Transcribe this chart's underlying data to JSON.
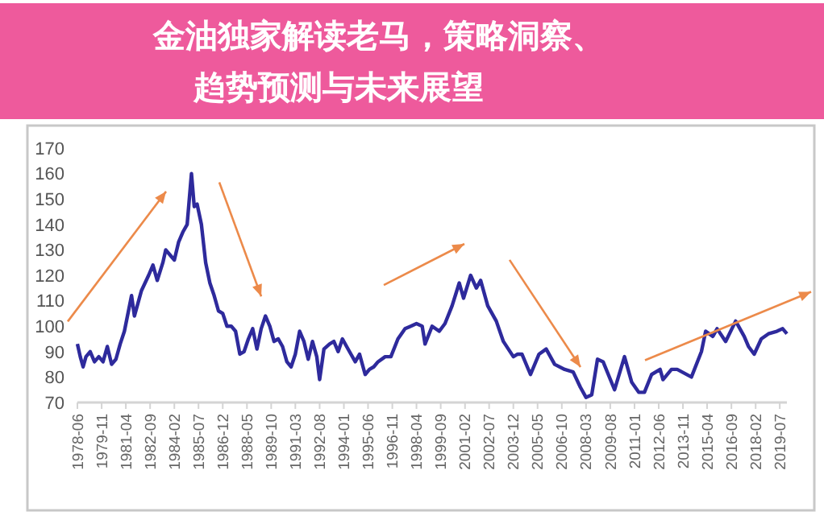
{
  "chart_data": {
    "type": "line",
    "title": "金油独家解读老马，策略洞察、趋势预测与未来展望",
    "x": [
      "1978-06",
      "1978-08",
      "1978-10",
      "1978-12",
      "1979-03",
      "1979-06",
      "1979-09",
      "1979-12",
      "1980-03",
      "1980-06",
      "1980-09",
      "1980-12",
      "1981-03",
      "1981-08",
      "1981-10",
      "1982-03",
      "1982-08",
      "1982-11",
      "1983-02",
      "1983-06",
      "1983-08",
      "1983-11",
      "1984-02",
      "1984-05",
      "1984-08",
      "1984-11",
      "1985-02",
      "1985-04",
      "1985-06",
      "1985-09",
      "1985-12",
      "1986-03",
      "1986-06",
      "1986-09",
      "1986-12",
      "1987-03",
      "1987-06",
      "1987-09",
      "1987-12",
      "1988-03",
      "1988-06",
      "1988-09",
      "1988-12",
      "1989-03",
      "1989-06",
      "1989-09",
      "1989-12",
      "1990-03",
      "1990-06",
      "1990-09",
      "1990-12",
      "1991-03",
      "1991-06",
      "1991-09",
      "1991-12",
      "1992-03",
      "1992-06",
      "1992-08",
      "1992-11",
      "1993-03",
      "1993-06",
      "1993-09",
      "1993-12",
      "1994-03",
      "1994-06",
      "1994-09",
      "1994-12",
      "1995-04",
      "1995-07",
      "1995-10",
      "1996-01",
      "1996-06",
      "1996-10",
      "1997-03",
      "1997-08",
      "1997-12",
      "1998-04",
      "1998-08",
      "1998-10",
      "1999-03",
      "1999-08",
      "1999-12",
      "2000-05",
      "2000-10",
      "2001-01",
      "2001-06",
      "2001-10",
      "2002-01",
      "2002-06",
      "2002-12",
      "2003-05",
      "2003-12",
      "2004-03",
      "2004-06",
      "2004-12",
      "2005-06",
      "2005-11",
      "2006-05",
      "2006-12",
      "2007-06",
      "2007-11",
      "2008-03",
      "2008-07",
      "2008-11",
      "2009-03",
      "2009-11",
      "2010-06",
      "2010-11",
      "2011-04",
      "2011-08",
      "2012-01",
      "2012-07",
      "2012-09",
      "2013-03",
      "2013-07",
      "2014-05",
      "2014-12",
      "2015-03",
      "2015-08",
      "2015-11",
      "2016-05",
      "2016-12",
      "2017-06",
      "2017-09",
      "2018-01",
      "2018-06",
      "2018-11",
      "2019-05",
      "2019-09",
      "2019-12"
    ],
    "series": [
      {
        "color": "#2e2a9c",
        "values": [
          93,
          88,
          84,
          88,
          90,
          86,
          88,
          86,
          92,
          85,
          87,
          93,
          98,
          112,
          104,
          114,
          120,
          124,
          118,
          125,
          130,
          128,
          126,
          133,
          137,
          140,
          160,
          147,
          148,
          140,
          125,
          117,
          112,
          106,
          105,
          100,
          100,
          98,
          89,
          90,
          95,
          99,
          91,
          99,
          104,
          100,
          94,
          95,
          92,
          86,
          84,
          89,
          98,
          94,
          87,
          94,
          88,
          79,
          91,
          93,
          94,
          90,
          95,
          92,
          89,
          86,
          89,
          81,
          83,
          84,
          86,
          88,
          88,
          95,
          99,
          100,
          101,
          100,
          93,
          100,
          98,
          101,
          108,
          117,
          111,
          120,
          115,
          118,
          108,
          102,
          94,
          88,
          89,
          89,
          81,
          89,
          91,
          85,
          83,
          82,
          76,
          72,
          73,
          87,
          86,
          75,
          88,
          78,
          74,
          74,
          81,
          83,
          79,
          83,
          83,
          80,
          90,
          98,
          96,
          99,
          94,
          102,
          96,
          92,
          89,
          95,
          97,
          98,
          99,
          97
        ]
      }
    ],
    "xlim": [
      "1978-06",
      "2019-12"
    ],
    "xticks": [
      "1978-06",
      "1979-11",
      "1981-04",
      "1982-09",
      "1984-02",
      "1985-07",
      "1986-12",
      "1988-05",
      "1989-10",
      "1991-03",
      "1992-08",
      "1994-01",
      "1995-06",
      "1996-11",
      "1998-04",
      "1999-09",
      "2001-02",
      "2002-07",
      "2003-12",
      "2005-05",
      "2006-10",
      "2008-03",
      "2009-08",
      "2011-01",
      "2012-06",
      "2013-11",
      "2015-04",
      "2016-09",
      "2018-02",
      "2019-07"
    ],
    "ylim": [
      70,
      170
    ],
    "yticks": [
      70,
      80,
      90,
      100,
      110,
      120,
      130,
      140,
      150,
      160,
      170
    ],
    "grid": false,
    "marker": "none",
    "line_style": "solid"
  }
}
